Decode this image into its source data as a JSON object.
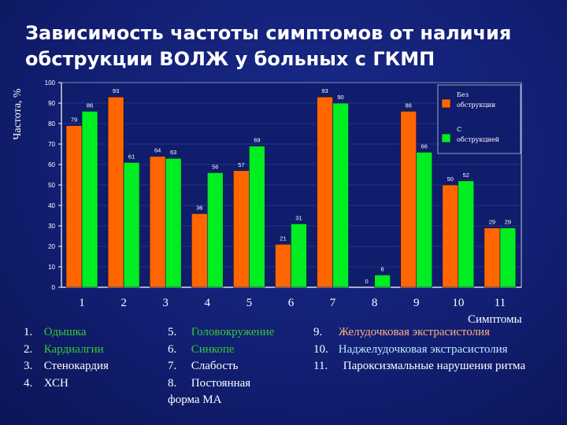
{
  "title": "Зависимость частоты симптомов от наличия обструкции ВОЛЖ у больных с ГКМП",
  "chart_data": {
    "type": "bar",
    "categories": [
      "1",
      "2",
      "3",
      "4",
      "5",
      "6",
      "7",
      "8",
      "9",
      "10",
      "11"
    ],
    "series": [
      {
        "name": "Без обструкции",
        "color": "#ff6600",
        "values": [
          79,
          93,
          64,
          36,
          57,
          21,
          93,
          0,
          86,
          50,
          29
        ]
      },
      {
        "name": "С обструкцией",
        "color": "#00ee22",
        "values": [
          86,
          61,
          63,
          56,
          69,
          31,
          90,
          6,
          66,
          52,
          29
        ]
      }
    ],
    "ylabel": "Частота, %",
    "xlabel": "Симптомы",
    "ylim": [
      0,
      100
    ],
    "yticks": [
      0,
      10,
      20,
      30,
      40,
      50,
      60,
      70,
      80,
      90,
      100
    ],
    "legend_position": "top-right"
  },
  "legend": [
    [
      {
        "num": "1.",
        "text": "Одышка",
        "color": "green"
      },
      {
        "num": "2.",
        "text": "Кардиалгии",
        "color": "green"
      },
      {
        "num": "3.",
        "text": "Стенокардия",
        "color": "white"
      },
      {
        "num": "4.",
        "text": "ХСН",
        "color": "white"
      }
    ],
    [
      {
        "num": "5.",
        "text": "Головокружение",
        "color": "green"
      },
      {
        "num": "6.",
        "text": "Синкопе",
        "color": "green"
      },
      {
        "num": "7.",
        "text": "Слабость",
        "color": "white"
      },
      {
        "num": "8.",
        "text": "Постоянная форма МА",
        "color": "white"
      }
    ],
    [
      {
        "num": "9.",
        "text": "Желудочковая экстрасистолия",
        "color": "orange"
      },
      {
        "num": "10.",
        "text": "Наджелудочковая экстрасистолия",
        "color": "cyan"
      },
      {
        "num": "11.",
        "text": "Пароксизмальные нарушения ритма",
        "color": "white"
      }
    ]
  ]
}
